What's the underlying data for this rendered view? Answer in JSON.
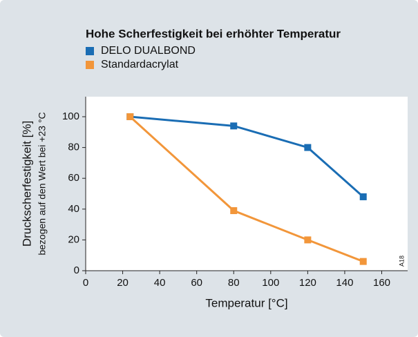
{
  "chart_data": {
    "type": "line",
    "title": "Hohe Scherfestigkeit bei erhöhter Temperatur",
    "x_label": "Temperatur [°C]",
    "y_label": "Druckscherfestigkeit [%]",
    "y_sublabel": "bezogen auf den Wert bei +23 °C",
    "annotation": "A18",
    "x": [
      24,
      80,
      120,
      150
    ],
    "series": [
      {
        "name": "DELO DUALBOND",
        "color": "#1a6db4",
        "values": [
          100,
          94,
          80,
          48
        ]
      },
      {
        "name": "Standardacrylat",
        "color": "#f2963a",
        "values": [
          100,
          39,
          20,
          6
        ]
      }
    ],
    "xlim": [
      0,
      174
    ],
    "ylim": [
      0,
      113
    ],
    "xticks": [
      0,
      20,
      40,
      60,
      80,
      100,
      120,
      140,
      160
    ],
    "yticks": [
      0,
      20,
      40,
      60,
      80,
      100
    ],
    "grid": false
  }
}
